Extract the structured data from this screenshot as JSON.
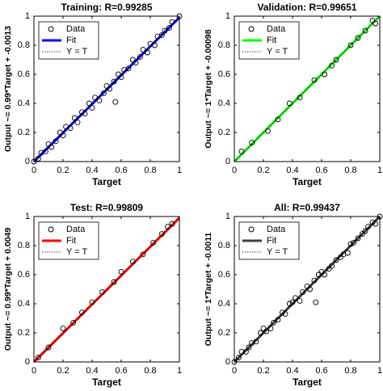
{
  "chart_data": [
    {
      "type": "scatter",
      "title": "Training: R=0.99285",
      "xlabel": "Target",
      "ylabel": "Output ~= 0.99*Target + -0.0013",
      "xlim": [
        0,
        1
      ],
      "ylim": [
        0,
        1
      ],
      "xticks": [
        0,
        0.2,
        0.4,
        0.6,
        0.8,
        1
      ],
      "yticks": [
        0,
        0.2,
        0.4,
        0.6,
        0.8,
        1
      ],
      "series": [
        {
          "name": "Data",
          "color": "#000000",
          "marker": "circle",
          "x": [
            0,
            0.03,
            0.05,
            0.08,
            0.1,
            0.12,
            0.15,
            0.18,
            0.2,
            0.22,
            0.25,
            0.28,
            0.3,
            0.33,
            0.35,
            0.38,
            0.4,
            0.42,
            0.45,
            0.48,
            0.5,
            0.52,
            0.55,
            0.56,
            0.58,
            0.6,
            0.62,
            0.65,
            0.68,
            0.7,
            0.73,
            0.75,
            0.78,
            0.8,
            0.83,
            0.85,
            0.88,
            0.9,
            0.93,
            0.95,
            1
          ],
          "values": [
            0,
            0.02,
            0.06,
            0.07,
            0.12,
            0.1,
            0.14,
            0.2,
            0.18,
            0.24,
            0.23,
            0.3,
            0.27,
            0.34,
            0.33,
            0.4,
            0.37,
            0.44,
            0.42,
            0.47,
            0.52,
            0.5,
            0.55,
            0.41,
            0.6,
            0.58,
            0.63,
            0.64,
            0.7,
            0.68,
            0.72,
            0.77,
            0.75,
            0.81,
            0.8,
            0.86,
            0.87,
            0.9,
            0.92,
            0.96,
            1
          ]
        },
        {
          "name": "Fit",
          "color": "#0000ff",
          "marker": "line",
          "x": [
            0,
            1
          ],
          "values": [
            0,
            0.99
          ]
        },
        {
          "name": "Y = T",
          "color": "#000000",
          "marker": "dotted",
          "x": [
            0,
            1
          ],
          "values": [
            0,
            1
          ]
        }
      ]
    },
    {
      "type": "scatter",
      "title": "Validation: R=0.99651",
      "xlabel": "Target",
      "ylabel": "Output ~= 1*Target + -0.00098",
      "xlim": [
        0,
        1
      ],
      "ylim": [
        0,
        1
      ],
      "xticks": [
        0,
        0.2,
        0.4,
        0.6,
        0.8,
        1
      ],
      "yticks": [
        0,
        0.2,
        0.4,
        0.6,
        0.8,
        1
      ],
      "series": [
        {
          "name": "Data",
          "color": "#000000",
          "marker": "circle",
          "x": [
            0.05,
            0.12,
            0.23,
            0.3,
            0.38,
            0.45,
            0.55,
            0.62,
            0.67,
            0.7,
            0.8,
            0.85,
            0.9,
            0.95,
            0.97
          ],
          "values": [
            0.07,
            0.13,
            0.21,
            0.29,
            0.4,
            0.44,
            0.56,
            0.6,
            0.66,
            0.7,
            0.8,
            0.85,
            0.9,
            0.97,
            0.95
          ]
        },
        {
          "name": "Fit",
          "color": "#00ff00",
          "marker": "line",
          "x": [
            0,
            1
          ],
          "values": [
            0,
            1
          ]
        },
        {
          "name": "Y = T",
          "color": "#000000",
          "marker": "dotted",
          "x": [
            0,
            1
          ],
          "values": [
            0,
            1
          ]
        }
      ]
    },
    {
      "type": "scatter",
      "title": "Test: R=0.99809",
      "xlabel": "Target",
      "ylabel": "Output ~= 0.99*Target + 0.0049",
      "xlim": [
        0,
        1
      ],
      "ylim": [
        0,
        1
      ],
      "xticks": [
        0,
        0.2,
        0.4,
        0.6,
        0.8,
        1
      ],
      "yticks": [
        0,
        0.2,
        0.4,
        0.6,
        0.8,
        1
      ],
      "series": [
        {
          "name": "Data",
          "color": "#000000",
          "marker": "circle",
          "x": [
            0.03,
            0.1,
            0.2,
            0.27,
            0.33,
            0.4,
            0.47,
            0.55,
            0.6,
            0.68,
            0.75,
            0.82,
            0.88,
            0.92,
            0.95
          ],
          "values": [
            0.03,
            0.1,
            0.23,
            0.27,
            0.34,
            0.41,
            0.48,
            0.55,
            0.62,
            0.69,
            0.74,
            0.82,
            0.88,
            0.93,
            0.95
          ]
        },
        {
          "name": "Fit",
          "color": "#ff0000",
          "marker": "line",
          "x": [
            0,
            1
          ],
          "values": [
            0,
            0.99
          ]
        },
        {
          "name": "Y = T",
          "color": "#000000",
          "marker": "dotted",
          "x": [
            0,
            1
          ],
          "values": [
            0,
            1
          ]
        }
      ]
    },
    {
      "type": "scatter",
      "title": "All: R=0.99437",
      "xlabel": "Target",
      "ylabel": "Output ~= 1*Target + -0.0011",
      "xlim": [
        0,
        1
      ],
      "ylim": [
        0,
        1
      ],
      "xticks": [
        0,
        0.2,
        0.4,
        0.6,
        0.8,
        1
      ],
      "yticks": [
        0,
        0.2,
        0.4,
        0.6,
        0.8,
        1
      ],
      "series": [
        {
          "name": "Data",
          "color": "#000000",
          "marker": "circle",
          "x": [
            0,
            0.03,
            0.05,
            0.08,
            0.1,
            0.12,
            0.15,
            0.18,
            0.2,
            0.22,
            0.25,
            0.27,
            0.3,
            0.33,
            0.35,
            0.38,
            0.4,
            0.42,
            0.45,
            0.47,
            0.5,
            0.52,
            0.55,
            0.56,
            0.58,
            0.6,
            0.62,
            0.65,
            0.67,
            0.7,
            0.73,
            0.75,
            0.78,
            0.8,
            0.82,
            0.85,
            0.88,
            0.9,
            0.92,
            0.95,
            0.97,
            1
          ],
          "values": [
            0,
            0.03,
            0.07,
            0.07,
            0.1,
            0.13,
            0.14,
            0.2,
            0.23,
            0.21,
            0.23,
            0.27,
            0.29,
            0.34,
            0.33,
            0.4,
            0.41,
            0.44,
            0.42,
            0.48,
            0.52,
            0.5,
            0.56,
            0.41,
            0.6,
            0.62,
            0.6,
            0.64,
            0.66,
            0.7,
            0.72,
            0.74,
            0.75,
            0.81,
            0.82,
            0.85,
            0.88,
            0.9,
            0.93,
            0.96,
            0.95,
            1
          ]
        },
        {
          "name": "Fit",
          "color": "#404040",
          "marker": "line",
          "x": [
            0,
            1
          ],
          "values": [
            0,
            1
          ]
        },
        {
          "name": "Y = T",
          "color": "#000000",
          "marker": "dotted",
          "x": [
            0,
            1
          ],
          "values": [
            0,
            1
          ]
        }
      ]
    }
  ]
}
